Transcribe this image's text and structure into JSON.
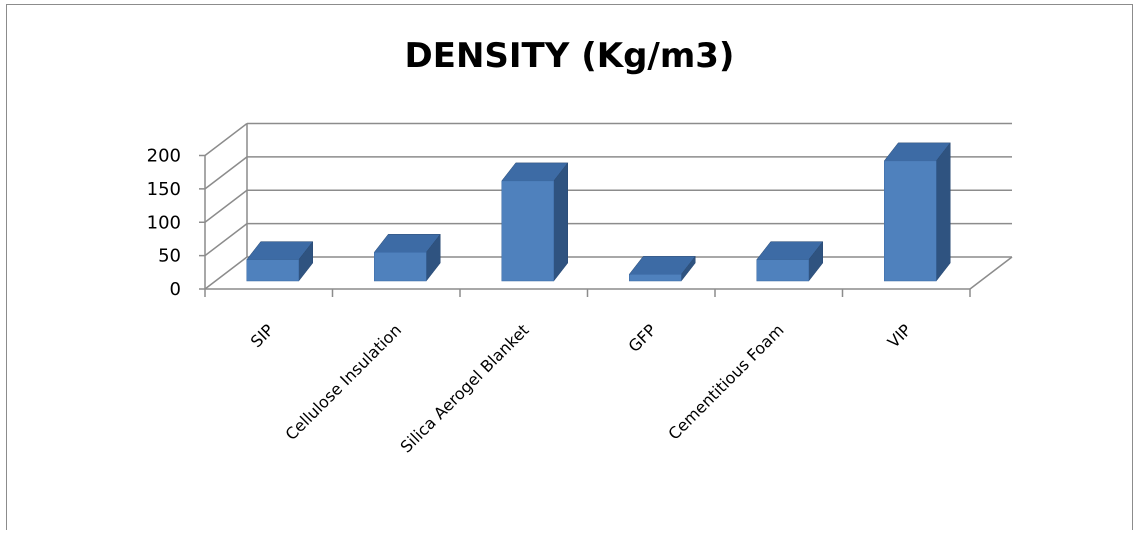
{
  "chart_data": {
    "type": "bar",
    "style": "3d-column",
    "title": "DENSITY (Kg/m3)",
    "xlabel": "",
    "ylabel": "",
    "categories": [
      "SIP",
      "Cellulose Insulation",
      "Silica Aerogel Blanket",
      "GFP",
      "Cementitious Foam",
      "VIP"
    ],
    "values": [
      32,
      43,
      150,
      10,
      32,
      180
    ],
    "ylim": [
      0,
      200
    ],
    "yticks": [
      "0",
      "50",
      "100",
      "150",
      "200"
    ],
    "grid": true,
    "legend": "none",
    "colors": {
      "bar_front": "#4f81bd",
      "bar_top": "#3d6ba5",
      "bar_side": "#2f5380",
      "grid": "#8c8c8c"
    }
  }
}
